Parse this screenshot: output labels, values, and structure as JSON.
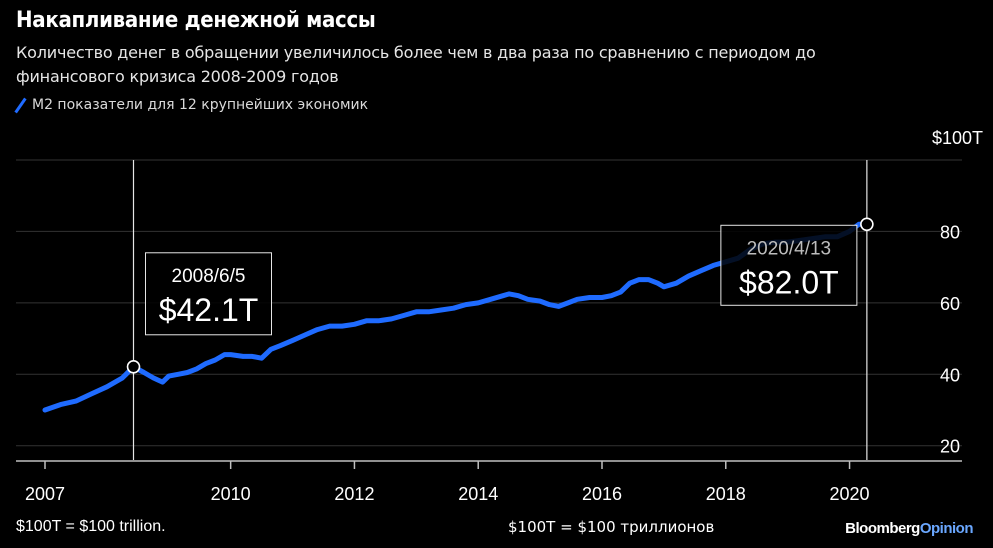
{
  "title": "Накапливание денежной массы",
  "subtitle": "Количество денег в обращении увеличилось более чем в два раза по сравнению с периодом до финансового кризиса 2008-2009 годов",
  "footer": {
    "note_en": "$100T = $100 trillion.",
    "note_ru": "$100T = $100 триллионов",
    "brand_part1": "Bloomberg",
    "brand_part2": "Opinion"
  },
  "colors": {
    "background": "#000000",
    "line": "#1f6bff",
    "grid": "#333333",
    "text": "#ffffff"
  },
  "chart_data": {
    "type": "line",
    "title": "Накапливание денежной массы",
    "ylabel": "$100T",
    "xlim": [
      2007.0,
      2021.3
    ],
    "ylim": [
      16,
      100
    ],
    "y_ticks": [
      {
        "value": 100,
        "label": "$100T"
      },
      {
        "value": 80,
        "label": "80"
      },
      {
        "value": 60,
        "label": "60"
      },
      {
        "value": 40,
        "label": "40"
      },
      {
        "value": 20,
        "label": "20"
      }
    ],
    "x_ticks": [
      {
        "value": 2007.0,
        "label": "2007"
      },
      {
        "value": 2010.0,
        "label": "2010"
      },
      {
        "value": 2012.0,
        "label": "2012"
      },
      {
        "value": 2014.0,
        "label": "2014"
      },
      {
        "value": 2016.0,
        "label": "2016"
      },
      {
        "value": 2018.0,
        "label": "2018"
      },
      {
        "value": 2020.0,
        "label": "2020"
      }
    ],
    "grid": true,
    "legend_position": "top-left",
    "series": [
      {
        "name": "M2 показатели для 12 крупнейших экономик",
        "color": "#1f6bff",
        "x": [
          2007.0,
          2007.25,
          2007.5,
          2007.75,
          2008.0,
          2008.25,
          2008.43,
          2008.6,
          2008.75,
          2008.9,
          2009.0,
          2009.15,
          2009.3,
          2009.45,
          2009.6,
          2009.75,
          2009.9,
          2010.0,
          2010.2,
          2010.35,
          2010.5,
          2010.65,
          2010.8,
          2011.0,
          2011.2,
          2011.4,
          2011.6,
          2011.8,
          2012.0,
          2012.2,
          2012.4,
          2012.6,
          2012.8,
          2013.0,
          2013.2,
          2013.4,
          2013.6,
          2013.8,
          2014.0,
          2014.2,
          2014.4,
          2014.5,
          2014.65,
          2014.8,
          2015.0,
          2015.15,
          2015.3,
          2015.45,
          2015.6,
          2015.8,
          2016.0,
          2016.15,
          2016.3,
          2016.45,
          2016.6,
          2016.75,
          2016.9,
          2017.0,
          2017.2,
          2017.4,
          2017.6,
          2017.8,
          2018.0,
          2018.2,
          2018.4,
          2018.6,
          2018.8,
          2019.0,
          2019.2,
          2019.4,
          2019.6,
          2019.8,
          2020.0,
          2020.15,
          2020.28
        ],
        "values": [
          30.0,
          31.5,
          32.5,
          34.5,
          36.5,
          39.0,
          42.1,
          40.5,
          39.0,
          37.8,
          39.5,
          40.0,
          40.5,
          41.5,
          43.0,
          44.0,
          45.5,
          45.5,
          45.0,
          45.0,
          44.5,
          47.0,
          48.0,
          49.5,
          51.0,
          52.5,
          53.5,
          53.5,
          54.0,
          55.0,
          55.0,
          55.5,
          56.5,
          57.5,
          57.5,
          58.0,
          58.5,
          59.5,
          60.0,
          61.0,
          62.0,
          62.5,
          62.0,
          61.0,
          60.5,
          59.5,
          59.0,
          60.0,
          61.0,
          61.5,
          61.5,
          62.0,
          63.0,
          65.5,
          66.5,
          66.5,
          65.5,
          64.5,
          65.5,
          67.5,
          69.0,
          70.5,
          71.5,
          72.5,
          75.0,
          76.5,
          77.0,
          77.0,
          77.5,
          78.0,
          78.5,
          78.5,
          80.0,
          82.0,
          82.0
        ]
      }
    ],
    "annotations": [
      {
        "date": "2008/6/5",
        "x": 2008.43,
        "value": 42.1,
        "label": "$42.1T"
      },
      {
        "date": "2020/4/13",
        "x": 2020.28,
        "value": 82.0,
        "label": "$82.0T"
      }
    ]
  }
}
